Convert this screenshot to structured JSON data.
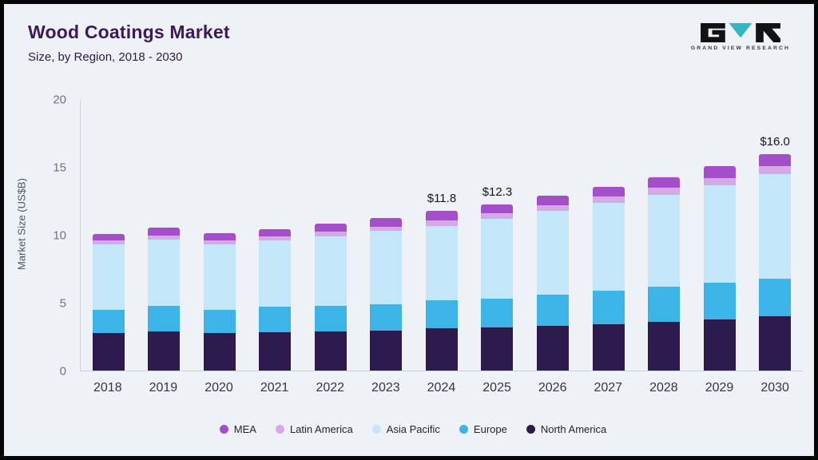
{
  "header": {
    "title": "Wood Coatings Market",
    "subtitle": "Size, by Region, 2018 - 2030",
    "brand": "GRAND VIEW RESEARCH"
  },
  "brand_colors": {
    "logo_black": "#121212",
    "logo_teal": "#31b6c5"
  },
  "chart_data": {
    "type": "bar",
    "stacked": true,
    "title": "Wood Coatings Market Size, by Region, 2018 - 2030",
    "xlabel": "",
    "ylabel": "Market Size (US$B)",
    "ylim": [
      0,
      20
    ],
    "yticks": [
      0,
      5,
      10,
      15,
      20
    ],
    "grid": false,
    "legend_position": "bottom",
    "categories": [
      "2018",
      "2019",
      "2020",
      "2021",
      "2022",
      "2023",
      "2024",
      "2025",
      "2026",
      "2027",
      "2028",
      "2029",
      "2030"
    ],
    "series": [
      {
        "name": "North America",
        "color": "#2d1b4e",
        "values": [
          2.8,
          2.9,
          2.8,
          2.85,
          2.9,
          2.95,
          3.1,
          3.2,
          3.3,
          3.4,
          3.6,
          3.8,
          4.0
        ]
      },
      {
        "name": "Europe",
        "color": "#3cb4e8",
        "values": [
          1.7,
          1.9,
          1.7,
          1.85,
          1.9,
          1.95,
          2.1,
          2.1,
          2.3,
          2.5,
          2.6,
          2.7,
          2.8
        ]
      },
      {
        "name": "Asia Pacific",
        "color": "#c3e7f8",
        "values": [
          4.8,
          4.9,
          4.8,
          4.9,
          5.1,
          5.4,
          5.5,
          5.9,
          6.2,
          6.5,
          6.8,
          7.2,
          7.7
        ]
      },
      {
        "name": "Latin America",
        "color": "#d5a9e8",
        "values": [
          0.3,
          0.3,
          0.3,
          0.3,
          0.35,
          0.35,
          0.4,
          0.4,
          0.4,
          0.45,
          0.5,
          0.5,
          0.6
        ]
      },
      {
        "name": "MEA",
        "color": "#a44fc9",
        "values": [
          0.5,
          0.55,
          0.55,
          0.55,
          0.6,
          0.65,
          0.7,
          0.7,
          0.7,
          0.75,
          0.8,
          0.9,
          0.9
        ]
      }
    ],
    "totals": [
      10.1,
      10.55,
      10.15,
      10.45,
      10.85,
      11.3,
      11.8,
      12.3,
      12.9,
      13.6,
      14.3,
      15.1,
      16.0
    ],
    "value_labels": [
      "",
      "",
      "",
      "",
      "",
      "",
      "$11.8",
      "$12.3",
      "",
      "",
      "",
      "",
      "$16.0"
    ]
  }
}
